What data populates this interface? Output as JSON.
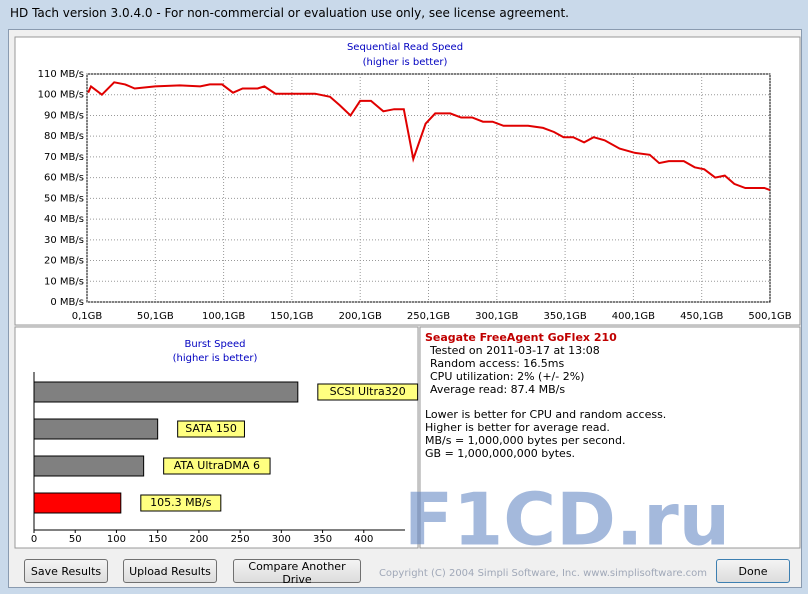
{
  "window": {
    "title": "HD Tach version 3.0.4.0  - For non-commercial or evaluation use only, see license agreement."
  },
  "chart_data": [
    {
      "type": "line",
      "title": "Sequential Read Speed",
      "subtitle": "(higher is better)",
      "x": [
        1,
        3,
        11,
        20,
        28,
        35,
        50,
        68,
        83,
        90,
        99,
        107,
        114,
        125,
        130,
        138,
        156,
        167,
        178,
        185,
        193,
        200,
        208,
        217,
        225,
        232,
        239,
        248,
        255,
        266,
        274,
        282,
        290,
        297,
        305,
        323,
        334,
        342,
        349,
        356,
        364,
        371,
        379,
        390,
        401,
        412,
        419,
        426,
        437,
        445,
        452,
        460,
        467,
        474,
        482,
        489,
        496,
        500.1
      ],
      "series": [
        {
          "name": "Sequential Read",
          "color": "#e00000",
          "values": [
            101,
            104,
            100,
            106,
            105,
            103,
            104,
            104.5,
            104,
            105,
            105,
            101,
            103,
            103,
            104,
            100.5,
            100.5,
            100.5,
            99,
            95,
            90,
            97,
            97,
            92,
            93,
            93,
            69,
            86,
            91,
            91,
            89,
            89,
            87,
            87,
            85,
            85,
            84,
            82,
            79.5,
            79.5,
            77,
            79.5,
            78,
            74,
            72,
            71,
            67,
            68,
            68,
            65,
            64,
            60,
            61,
            57,
            55,
            55,
            55,
            54
          ]
        }
      ],
      "xlim": [
        0.1,
        500.1
      ],
      "xticks": [
        {
          "value": 0.1,
          "label": "0,1GB"
        },
        {
          "value": 50.1,
          "label": "50,1GB"
        },
        {
          "value": 100.1,
          "label": "100,1GB"
        },
        {
          "value": 150.1,
          "label": "150,1GB"
        },
        {
          "value": 200.1,
          "label": "200,1GB"
        },
        {
          "value": 250.1,
          "label": "250,1GB"
        },
        {
          "value": 300.1,
          "label": "300,1GB"
        },
        {
          "value": 350.1,
          "label": "350,1GB"
        },
        {
          "value": 400.1,
          "label": "400,1GB"
        },
        {
          "value": 450.1,
          "label": "450,1GB"
        },
        {
          "value": 500.1,
          "label": "500,1GB"
        }
      ],
      "ylim": [
        0,
        110
      ],
      "yticks": [
        {
          "value": 0,
          "label": "0 MB/s"
        },
        {
          "value": 10,
          "label": "10 MB/s"
        },
        {
          "value": 20,
          "label": "20 MB/s"
        },
        {
          "value": 30,
          "label": "30 MB/s"
        },
        {
          "value": 40,
          "label": "40 MB/s"
        },
        {
          "value": 50,
          "label": "50 MB/s"
        },
        {
          "value": 60,
          "label": "60 MB/s"
        },
        {
          "value": 70,
          "label": "70 MB/s"
        },
        {
          "value": 80,
          "label": "80 MB/s"
        },
        {
          "value": 90,
          "label": "90 MB/s"
        },
        {
          "value": 100,
          "label": "100 MB/s"
        },
        {
          "value": 110,
          "label": "110 MB/s"
        }
      ],
      "grid": true
    },
    {
      "type": "hbar",
      "title": "Burst Speed",
      "subtitle": "(higher is better)",
      "categories": [
        "SCSI Ultra320",
        "SATA 150",
        "ATA UltraDMA 6",
        null
      ],
      "values": [
        320,
        150,
        133,
        105.3
      ],
      "value_labels": [
        null,
        null,
        null,
        "105.3 MB/s"
      ],
      "colors": [
        "#808080",
        "#808080",
        "#808080",
        "#ff0000"
      ],
      "xlim": [
        0,
        450
      ],
      "xticks": [
        0,
        50,
        100,
        150,
        200,
        250,
        300,
        350,
        400
      ]
    }
  ],
  "info": {
    "drive": "Seagate FreeAgent GoFlex 210",
    "lines": [
      "Tested on 2011-03-17 at 13:08",
      "Random access: 16.5ms",
      "CPU utilization: 2% (+/- 2%)",
      "Average read: 87.4 MB/s"
    ],
    "notes": [
      "Lower is better for CPU and random access.",
      "Higher is better for average read.",
      "MB/s = 1,000,000 bytes per second.",
      "GB = 1,000,000,000 bytes."
    ]
  },
  "buttons": [
    "Save Results",
    "Upload Results",
    "Compare Another Drive",
    "Done"
  ],
  "copyright": "Copyright (C) 2004 Simpli Software, Inc. www.simplisoftware.com",
  "watermark": "F1CD.ru"
}
